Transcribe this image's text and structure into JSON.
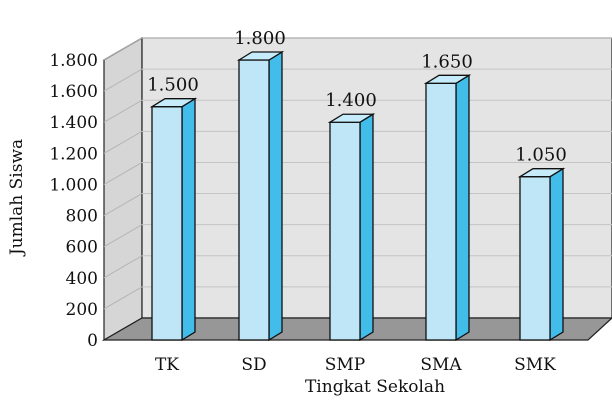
{
  "chart_data": {
    "type": "bar",
    "xlabel": "Tingkat Sekolah",
    "ylabel": "Jumlah Siswa",
    "categories": [
      "TK",
      "SD",
      "SMP",
      "SMA",
      "SMK"
    ],
    "values": [
      1500,
      1800,
      1400,
      1650,
      1050
    ],
    "value_labels": [
      "1.500",
      "1.800",
      "1.400",
      "1.650",
      "1.050"
    ],
    "ylim": [
      0,
      1800
    ],
    "yticks": [
      0,
      200,
      400,
      600,
      800,
      1000,
      1200,
      1400,
      1600,
      1800
    ],
    "ytick_labels": [
      "0",
      "200",
      "400",
      "600",
      "800",
      "1.000",
      "1.200",
      "1.400",
      "1.600",
      "1.800"
    ],
    "grid": true,
    "three_d": true,
    "colors": {
      "bar_front": "#bfe6f7",
      "bar_side": "#42bce9",
      "bar_top": "#c6ecfb",
      "back_wall": "#e4e4e4",
      "side_wall": "#d6d6d6",
      "floor": "#979797"
    }
  }
}
